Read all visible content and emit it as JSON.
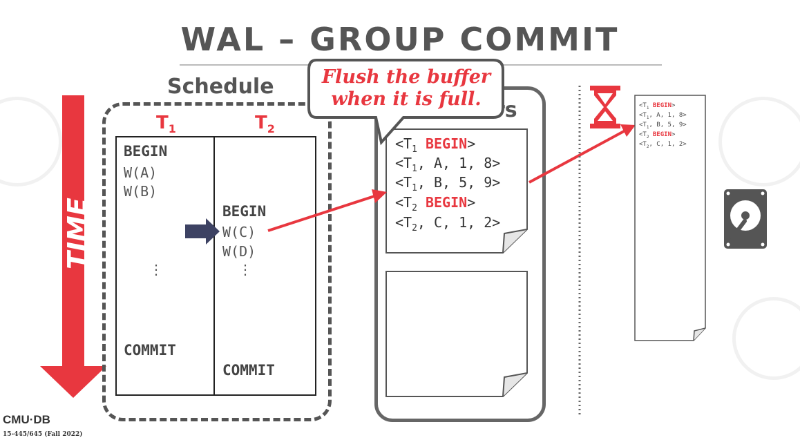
{
  "title": "WAL – GROUP COMMIT",
  "schedule": {
    "label": "Schedule",
    "t1_label": "T",
    "t1_sub": "1",
    "t2_label": "T",
    "t2_sub": "2",
    "t1_ops": [
      "BEGIN",
      "W(A)",
      "W(B)",
      "⋮",
      "COMMIT"
    ],
    "t2_ops": [
      "BEGIN",
      "W(C)",
      "W(D)",
      "⋮",
      "COMMIT"
    ]
  },
  "time_label": "TIME",
  "buffers": {
    "label_visible": "rs",
    "entries": [
      {
        "prefix": "<T",
        "sub": "1",
        "kw": "BEGIN",
        "rest": ">"
      },
      {
        "prefix": "<T",
        "sub": "1",
        "kw": "",
        "rest": ", A, 1, 8>"
      },
      {
        "prefix": "<T",
        "sub": "1",
        "kw": "",
        "rest": ", B, 5, 9>"
      },
      {
        "prefix": "<T",
        "sub": "2",
        "kw": "BEGIN",
        "rest": ">"
      },
      {
        "prefix": "<T",
        "sub": "2",
        "kw": "",
        "rest": ", C, 1, 2>"
      }
    ]
  },
  "callout": {
    "line1": "Flush the buffer",
    "line2": "when it is full."
  },
  "disk": {
    "entries": [
      {
        "prefix": "<T",
        "sub": "1",
        "kw": "BEGIN",
        "rest": ">"
      },
      {
        "prefix": "<T",
        "sub": "1",
        "kw": "",
        "rest": ", A, 1, 8>"
      },
      {
        "prefix": "<T",
        "sub": "1",
        "kw": "",
        "rest": ", B, 5, 9>"
      },
      {
        "prefix": "<T",
        "sub": "2",
        "kw": "BEGIN",
        "rest": ">"
      },
      {
        "prefix": "<T",
        "sub": "2",
        "kw": "",
        "rest": ", C, 1, 2>"
      }
    ]
  },
  "icons": {
    "hourglass": "hourglass-icon",
    "disk": "hard-disk-icon",
    "pointer": "pointer-arrow-icon"
  },
  "colors": {
    "accent": "#e8373f",
    "dark": "#555555",
    "pointer": "#3d4263"
  },
  "footer": {
    "logo": "CMU·DB",
    "course": "15-445/645 (Fall 2022)"
  }
}
